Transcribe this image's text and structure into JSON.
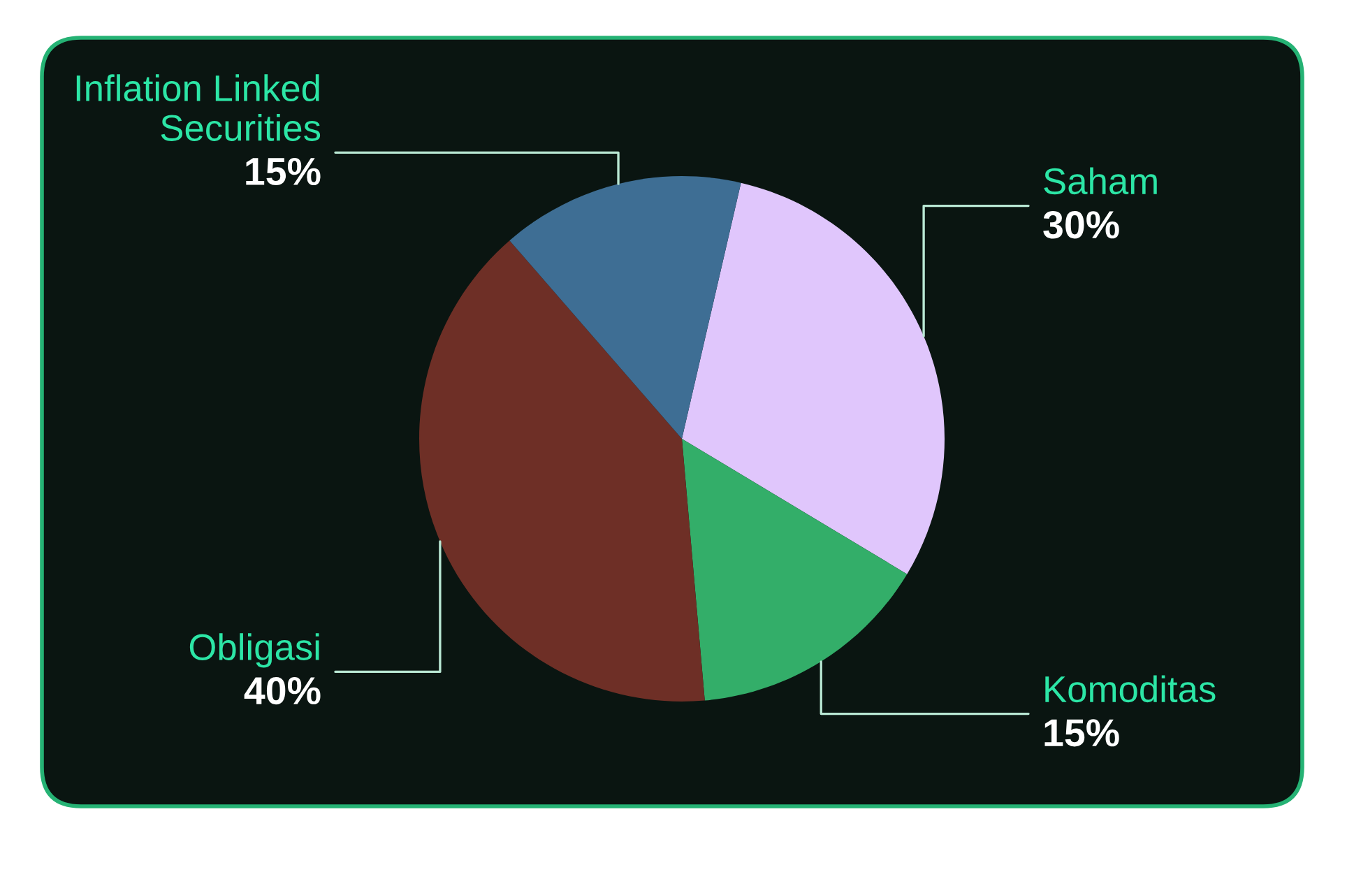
{
  "chart_data": {
    "type": "pie",
    "categories": [
      "Saham",
      "Komoditas",
      "Obligasi",
      "Inflation Linked Securities"
    ],
    "values": [
      30,
      15,
      40,
      15
    ],
    "colors": [
      "#e0c6fc",
      "#33ae69",
      "#6e2f26",
      "#3e6e94"
    ],
    "value_labels": [
      "30%",
      "15%",
      "40%",
      "15%"
    ]
  }
}
